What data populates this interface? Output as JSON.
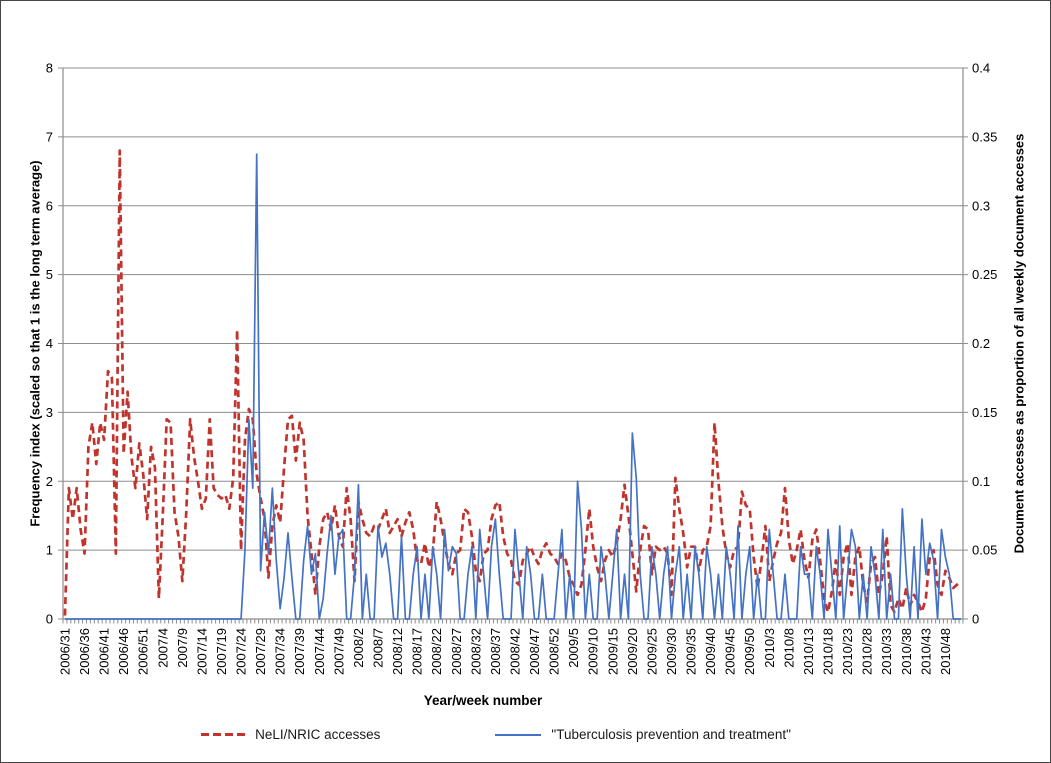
{
  "chart_data": {
    "type": "line",
    "title": "",
    "xlabel": "Year/week number",
    "ylabel_left": "Frequency index (scaled so that 1 is the long term average)",
    "ylabel_right": "Document accesses as proportion of all weekly document accesses",
    "grid": "horizontal",
    "grid_color": "#8c8c8c",
    "axis_color": "#8c8c8c",
    "text_color": "#000000",
    "legend_position": "bottom",
    "left_axis": {
      "min": 0,
      "max": 8,
      "tick_labels": [
        "0",
        "1",
        "2",
        "3",
        "4",
        "5",
        "6",
        "7",
        "8"
      ]
    },
    "right_axis": {
      "min": 0,
      "max": 0.4,
      "tick_labels": [
        "0",
        "0.05",
        "0.1",
        "0.15",
        "0.2",
        "0.25",
        "0.3",
        "0.35",
        "0.4"
      ]
    },
    "x_axis": {
      "first_week": "2006/31",
      "n_points": 230,
      "tick_interval_weeks": 5,
      "tick_labels": [
        "2006/31",
        "2006/36",
        "2006/41",
        "2006/46",
        "2006/51",
        "2007/4",
        "2007/9",
        "2007/14",
        "2007/19",
        "2007/24",
        "2007/29",
        "2007/34",
        "2007/39",
        "2007/44",
        "2007/49",
        "2008/2",
        "2008/7",
        "2008/12",
        "2008/17",
        "2008/22",
        "2008/27",
        "2008/32",
        "2008/37",
        "2008/42",
        "2008/47",
        "2008/52",
        "2009/5",
        "2009/10",
        "2009/15",
        "2009/20",
        "2009/25",
        "2009/30",
        "2009/35",
        "2009/40",
        "2009/45",
        "2009/50",
        "2010/3",
        "2010/8",
        "2010/13",
        "2010/18",
        "2010/23",
        "2010/28",
        "2010/33",
        "2010/38",
        "2010/43",
        "2010/48"
      ]
    },
    "series": [
      {
        "name": "NeLI/NRIC accesses",
        "axis": "left",
        "color": "#C0342D",
        "style": "dashed",
        "values": [
          0.05,
          1.9,
          1.45,
          1.9,
          1.3,
          0.95,
          2.5,
          2.85,
          2.25,
          2.85,
          2.6,
          3.6,
          3.5,
          0.95,
          6.8,
          2.4,
          3.3,
          2.35,
          1.9,
          2.55,
          2.1,
          1.45,
          2.5,
          2.2,
          0.3,
          1.5,
          2.9,
          2.85,
          1.55,
          1.2,
          0.55,
          1.55,
          2.9,
          2.35,
          2.0,
          1.6,
          1.75,
          2.9,
          1.9,
          1.8,
          1.75,
          1.8,
          1.6,
          2.05,
          4.2,
          1.0,
          2.6,
          3.05,
          2.9,
          2.1,
          1.75,
          1.45,
          0.6,
          1.35,
          1.65,
          1.4,
          2.2,
          2.9,
          2.95,
          2.3,
          2.85,
          2.6,
          1.5,
          0.95,
          0.35,
          1.05,
          1.45,
          1.55,
          1.3,
          1.65,
          1.2,
          1.05,
          1.9,
          1.45,
          0.55,
          1.7,
          1.45,
          1.25,
          1.2,
          1.35,
          1.3,
          1.45,
          1.6,
          1.25,
          1.35,
          1.45,
          1.2,
          1.4,
          1.55,
          1.3,
          0.85,
          0.8,
          1.1,
          0.75,
          0.95,
          1.7,
          1.45,
          1.1,
          0.8,
          0.65,
          0.95,
          1.0,
          1.6,
          1.55,
          1.2,
          0.7,
          0.55,
          0.95,
          1.0,
          1.45,
          1.65,
          1.7,
          1.2,
          0.95,
          0.85,
          0.55,
          0.5,
          0.85,
          0.95,
          1.05,
          0.9,
          0.8,
          1.0,
          1.1,
          0.95,
          0.9,
          0.8,
          0.95,
          0.85,
          0.6,
          0.5,
          0.35,
          0.5,
          1.0,
          1.6,
          1.05,
          0.75,
          0.55,
          0.85,
          1.0,
          0.9,
          1.1,
          1.45,
          1.95,
          1.5,
          0.95,
          0.4,
          1.0,
          1.35,
          1.3,
          0.65,
          1.05,
          1.0,
          1.05,
          0.95,
          0.35,
          2.05,
          1.6,
          1.25,
          0.75,
          1.05,
          1.05,
          0.7,
          1.0,
          1.05,
          1.35,
          2.85,
          2.0,
          1.35,
          0.95,
          0.75,
          1.0,
          1.05,
          1.85,
          1.65,
          1.6,
          0.9,
          0.45,
          0.85,
          1.35,
          0.55,
          0.85,
          1.1,
          1.25,
          1.9,
          1.15,
          0.8,
          1.0,
          1.3,
          0.85,
          0.6,
          1.15,
          1.3,
          0.85,
          0.3,
          0.1,
          0.4,
          0.85,
          0.35,
          0.9,
          1.1,
          0.35,
          0.9,
          1.05,
          0.5,
          0.25,
          0.8,
          0.9,
          0.35,
          0.65,
          1.2,
          0.2,
          0.1,
          0.3,
          0.15,
          0.45,
          0.2,
          0.35,
          0.25,
          0.1,
          0.3,
          0.9,
          1.0,
          0.5,
          0.35,
          0.7,
          0.6,
          0.45,
          0.5,
          0.55
        ]
      },
      {
        "name": "\"Tuberculosis prevention and treatment\"",
        "axis": "right",
        "color": "#4472C4",
        "style": "solid",
        "values": [
          0,
          0,
          0,
          0,
          0,
          0,
          0,
          0,
          0,
          0,
          0,
          0,
          0,
          0,
          0,
          0,
          0,
          0,
          0,
          0,
          0,
          0,
          0,
          0,
          0,
          0,
          0,
          0,
          0,
          0,
          0,
          0,
          0,
          0,
          0,
          0,
          0,
          0,
          0,
          0,
          0,
          0,
          0,
          0,
          0,
          0,
          0.05,
          0.145,
          0.095,
          0.3375,
          0.035,
          0.0775,
          0.0475,
          0.095,
          0.0425,
          0.0075,
          0.03,
          0.0625,
          0.03,
          0,
          0,
          0.0425,
          0.0675,
          0.0325,
          0.0475,
          0,
          0.015,
          0.0475,
          0.075,
          0.0325,
          0.06,
          0.065,
          0,
          0,
          0.0325,
          0.0975,
          0,
          0.0325,
          0,
          0,
          0.0675,
          0.045,
          0.055,
          0.0325,
          0,
          0,
          0.06,
          0,
          0,
          0.0325,
          0.0525,
          0,
          0.0325,
          0,
          0.0525,
          0.0325,
          0,
          0.065,
          0.035,
          0.0525,
          0.0475,
          0,
          0,
          0.0325,
          0.0525,
          0,
          0.065,
          0.0325,
          0,
          0.0525,
          0.0725,
          0.0325,
          0,
          0,
          0,
          0.065,
          0.0325,
          0,
          0.0525,
          0.0325,
          0,
          0,
          0.0325,
          0,
          0,
          0,
          0.0325,
          0.065,
          0,
          0.0325,
          0,
          0.1,
          0.065,
          0,
          0.0325,
          0,
          0,
          0.0525,
          0.0325,
          0,
          0.0325,
          0.065,
          0,
          0.0325,
          0,
          0.135,
          0.1025,
          0.0325,
          0,
          0,
          0.0525,
          0.0325,
          0,
          0.0325,
          0.0525,
          0,
          0.0325,
          0.0525,
          0,
          0.0325,
          0,
          0.0525,
          0.0325,
          0,
          0.0525,
          0.0325,
          0,
          0.0325,
          0,
          0.0525,
          0.0325,
          0,
          0.0675,
          0,
          0.0325,
          0.0525,
          0,
          0.0325,
          0,
          0,
          0.065,
          0.0325,
          0,
          0,
          0.0325,
          0,
          0,
          0,
          0.0525,
          0.0325,
          0.0325,
          0,
          0.0525,
          0.0325,
          0,
          0.065,
          0.0325,
          0,
          0.0675,
          0,
          0.0325,
          0.065,
          0.0525,
          0,
          0.0325,
          0,
          0.0525,
          0.0325,
          0,
          0.065,
          0,
          0.0325,
          0,
          0,
          0.08,
          0.0325,
          0,
          0.0525,
          0,
          0.0725,
          0.0325,
          0.055,
          0.0425,
          0,
          0.065,
          0.045,
          0.0325,
          0,
          0,
          0
        ]
      }
    ]
  },
  "legend": {
    "item1": "NeLI/NRIC accesses",
    "item2": "\"Tuberculosis prevention and treatment\""
  }
}
